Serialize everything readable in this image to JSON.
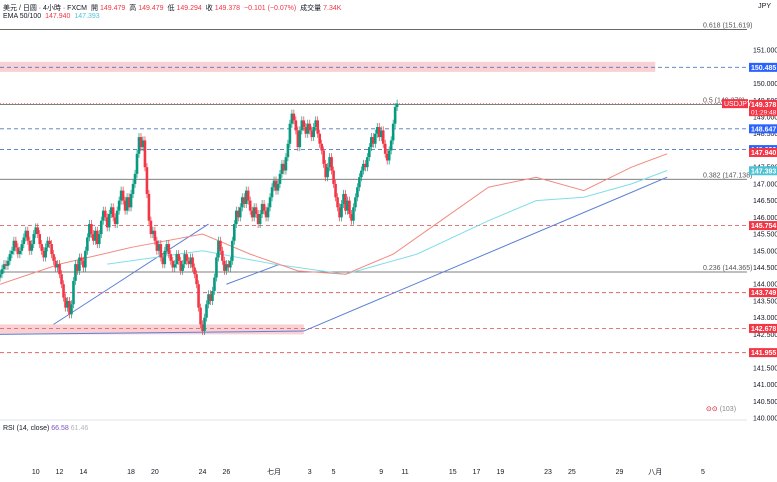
{
  "header": {
    "symbol": "美元 / 日圆 · 4小時 · FXCM",
    "open_label": "開",
    "open": "149.479",
    "high_label": "高",
    "high": "149.479",
    "low_label": "低",
    "low": "149.294",
    "close_label": "收",
    "close": "149.378",
    "change": "−0.101 (−0.07%)",
    "volume_label": "成交量",
    "volume": "7.34K",
    "ema_label": "EMA 50/100",
    "ema50": "147.940",
    "ema100": "147.393",
    "currency": "JPY"
  },
  "rsi": {
    "label": "RSI (14, close)",
    "value1": "66.58",
    "value2": "61.46"
  },
  "colors": {
    "up": "#089981",
    "down": "#f23645",
    "ema50": "#f28b82",
    "ema100": "#80deea",
    "trend": "#5b7fd6",
    "fib": "#555555",
    "dashed_blue": "#4a78c2",
    "dashed_red": "#e06666",
    "zone": "#f8c9cc",
    "current_price": "#f23645"
  },
  "chart_data": {
    "type": "candlestick",
    "ylim": [
      140.0,
      152.2
    ],
    "y_ticks": [
      "151.000",
      "150.500",
      "150.000",
      "149.500",
      "149.000",
      "148.500",
      "148.000",
      "147.500",
      "147.000",
      "146.500",
      "146.000",
      "145.500",
      "145.000",
      "144.500",
      "144.000",
      "143.500",
      "143.000",
      "142.500",
      "142.000",
      "141.500",
      "141.000",
      "140.500",
      "140.000"
    ],
    "x_ticks": [
      {
        "label": "10",
        "x": 10
      },
      {
        "label": "12",
        "x": 12
      },
      {
        "label": "14",
        "x": 14
      },
      {
        "label": "18",
        "x": 18
      },
      {
        "label": "20",
        "x": 20
      },
      {
        "label": "24",
        "x": 24
      },
      {
        "label": "26",
        "x": 26
      },
      {
        "label": "七月",
        "x": 30
      },
      {
        "label": "3",
        "x": 33
      },
      {
        "label": "5",
        "x": 35
      },
      {
        "label": "9",
        "x": 39
      },
      {
        "label": "11",
        "x": 41
      },
      {
        "label": "15",
        "x": 45
      },
      {
        "label": "17",
        "x": 47
      },
      {
        "label": "19",
        "x": 49
      },
      {
        "label": "23",
        "x": 53
      },
      {
        "label": "25",
        "x": 55
      },
      {
        "label": "29",
        "x": 59
      },
      {
        "label": "八月",
        "x": 62
      },
      {
        "label": "5",
        "x": 66
      }
    ],
    "xlim": [
      7.0,
      69.7
    ],
    "candles_per_day": 6,
    "start_day": 7.0,
    "closes": [
      144.3,
      144.45,
      144.6,
      144.55,
      144.7,
      144.9,
      145.0,
      145.3,
      145.1,
      144.9,
      145.0,
      145.2,
      145.4,
      145.6,
      145.3,
      145.0,
      145.2,
      145.5,
      145.7,
      145.5,
      145.2,
      145.0,
      144.8,
      145.1,
      145.3,
      145.2,
      144.9,
      144.7,
      144.5,
      144.6,
      144.3,
      144.0,
      143.6,
      143.3,
      143.5,
      143.1,
      143.4,
      144.1,
      144.6,
      144.4,
      144.8,
      144.7,
      144.5,
      145.0,
      145.4,
      145.8,
      145.5,
      145.3,
      145.6,
      145.2,
      145.5,
      145.9,
      146.2,
      146.0,
      145.7,
      146.1,
      146.3,
      146.0,
      145.8,
      146.2,
      146.5,
      146.8,
      146.5,
      146.2,
      146.6,
      146.3,
      146.7,
      147.0,
      147.3,
      147.9,
      148.4,
      148.1,
      148.3,
      147.5,
      146.7,
      145.9,
      145.5,
      145.6,
      145.3,
      145.0,
      145.2,
      144.8,
      144.6,
      145.0,
      145.2,
      144.9,
      144.7,
      144.5,
      144.6,
      144.9,
      144.7,
      144.4,
      144.6,
      144.9,
      144.7,
      144.6,
      144.8,
      144.5,
      144.3,
      144.0,
      143.3,
      142.8,
      142.6,
      143.0,
      143.4,
      143.7,
      143.5,
      143.8,
      144.2,
      144.8,
      145.3,
      145.0,
      144.7,
      144.4,
      144.6,
      144.5,
      144.7,
      145.3,
      145.8,
      146.2,
      146.0,
      146.3,
      146.6,
      146.4,
      146.8,
      146.5,
      146.2,
      146.0,
      146.3,
      146.1,
      145.8,
      146.1,
      146.4,
      146.2,
      146.0,
      146.3,
      146.6,
      146.9,
      147.1,
      146.8,
      147.0,
      147.3,
      147.6,
      147.4,
      147.8,
      148.2,
      148.8,
      149.1,
      148.9,
      148.6,
      148.1,
      148.6,
      148.9,
      148.7,
      148.5,
      148.8,
      148.6,
      148.4,
      148.7,
      148.9,
      148.5,
      148.2,
      148.0,
      147.6,
      147.2,
      147.5,
      147.8,
      147.4,
      147.0,
      146.6,
      146.3,
      146.0,
      146.4,
      146.7,
      146.2,
      146.5,
      146.1,
      145.9,
      146.3,
      146.6,
      146.9,
      147.2,
      147.4,
      147.6,
      147.5,
      147.8,
      148.1,
      148.4,
      148.2,
      148.5,
      148.7,
      148.4,
      148.6,
      148.2,
      147.9,
      147.7,
      148.0,
      148.3,
      148.8,
      149.3,
      149.4
    ],
    "ema50_points": [
      [
        7,
        144.0
      ],
      [
        12,
        144.6
      ],
      [
        18,
        145.1
      ],
      [
        24,
        145.5
      ],
      [
        28,
        144.9
      ],
      [
        32,
        144.4
      ],
      [
        36,
        144.3
      ],
      [
        40,
        144.9
      ],
      [
        44,
        145.9
      ],
      [
        48,
        146.9
      ],
      [
        52,
        147.2
      ],
      [
        56,
        146.8
      ],
      [
        60,
        147.5
      ],
      [
        63,
        147.9
      ]
    ],
    "ema100_points": [
      [
        16,
        144.6
      ],
      [
        24,
        145.0
      ],
      [
        30,
        144.6
      ],
      [
        36,
        144.3
      ],
      [
        42,
        144.9
      ],
      [
        48,
        145.9
      ],
      [
        52,
        146.5
      ],
      [
        56,
        146.6
      ],
      [
        60,
        147.0
      ],
      [
        63,
        147.4
      ]
    ],
    "trendlines": [
      [
        7,
        142.5,
        32.5,
        142.6
      ],
      [
        11.5,
        142.8,
        24.5,
        145.8
      ],
      [
        32.5,
        142.6,
        63,
        147.2
      ],
      [
        26,
        144.0,
        30.5,
        144.6
      ]
    ],
    "fib_levels": [
      {
        "label": "0.618 (151.619)",
        "price": 151.619
      },
      {
        "label": "0.5 (149.379)",
        "price": 149.379
      },
      {
        "label": "0.382 (147.138)",
        "price": 147.138
      },
      {
        "label": "0.236 (144.365)",
        "price": 144.365
      }
    ],
    "dashed_levels": [
      {
        "price": 150.485,
        "color": "blue"
      },
      {
        "price": 148.647,
        "color": "blue"
      },
      {
        "price": 148.026,
        "color": "blue"
      },
      {
        "price": 145.754,
        "color": "red"
      },
      {
        "price": 143.749,
        "color": "red"
      },
      {
        "price": 142.678,
        "color": "red"
      },
      {
        "price": 141.955,
        "color": "red"
      }
    ],
    "zones": [
      {
        "x0": 7,
        "x1": 62,
        "y0": 150.35,
        "y1": 150.65
      },
      {
        "x0": 7,
        "x1": 32.5,
        "y0": 142.5,
        "y1": 142.8
      }
    ],
    "price_tags": [
      {
        "label": "150.485",
        "price": 150.485,
        "style": "blue"
      },
      {
        "label": "149.378",
        "price": 149.378,
        "style": "red"
      },
      {
        "label": "148.647",
        "price": 148.647,
        "style": "blue"
      },
      {
        "label": "148.026",
        "price": 148.026,
        "style": "blue"
      },
      {
        "label": "147.940",
        "price": 147.94,
        "style": "red"
      },
      {
        "label": "147.393",
        "price": 147.393,
        "style": "cyan"
      },
      {
        "label": "145.754",
        "price": 145.754,
        "style": "red"
      },
      {
        "label": "143.749",
        "price": 143.749,
        "style": "red"
      },
      {
        "label": "142.678",
        "price": 142.678,
        "style": "red"
      },
      {
        "label": "141.955",
        "price": 141.955,
        "style": "red"
      }
    ],
    "symbol_tag": "USDJPY",
    "countdown": "01:29:48",
    "rsi_partial_label": "(103)"
  }
}
